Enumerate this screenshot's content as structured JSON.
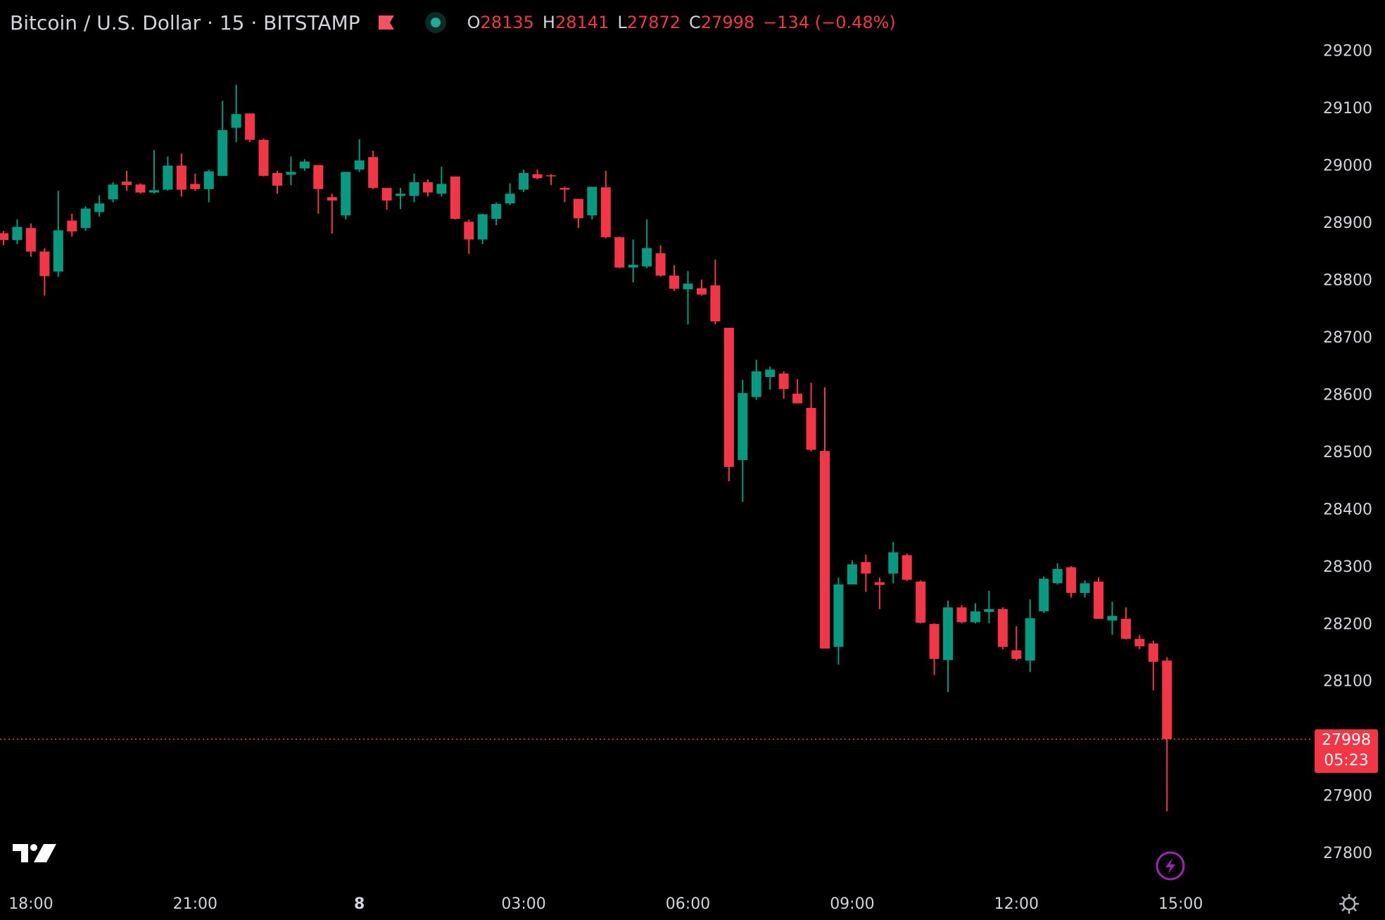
{
  "header": {
    "title": "Bitcoin / U.S. Dollar · 15 · BITSTAMP",
    "open_key": "O",
    "high_key": "H",
    "low_key": "L",
    "close_key": "C",
    "change_label": "−134 (−0.48%)",
    "countdown": "05:23"
  },
  "chart_data": {
    "type": "candlestick",
    "up_color": "#089981",
    "down_color": "#f23645",
    "categories": [
      null,
      null,
      "18:00",
      null,
      null,
      null,
      null,
      null,
      null,
      null,
      null,
      null,
      null,
      null,
      "21:00",
      null,
      null,
      null,
      null,
      null,
      null,
      null,
      null,
      null,
      null,
      null,
      "8",
      null,
      null,
      null,
      null,
      null,
      null,
      null,
      null,
      null,
      null,
      null,
      "03:00",
      null,
      null,
      null,
      null,
      null,
      null,
      null,
      null,
      null,
      null,
      null,
      "06:00",
      null,
      null,
      null,
      null,
      null,
      null,
      null,
      null,
      null,
      null,
      null,
      "09:00",
      null,
      null,
      null,
      null,
      null,
      null,
      null,
      null,
      null,
      null,
      null,
      "12:00",
      null,
      null,
      null,
      null,
      null,
      null,
      null,
      null,
      null,
      null,
      null,
      "15:00"
    ],
    "open": [
      28881,
      28869,
      28890,
      28849,
      28814,
      28903,
      28890,
      28918,
      28940,
      28971,
      28966,
      28952,
      28957,
      28999,
      28967,
      28958,
      28981,
      29065,
      29090,
      29044,
      28986,
      28983,
      28994,
      29000,
      28944,
      28912,
      28992,
      29014,
      28960,
      28946,
      28946,
      28970,
      28950,
      28980,
      28901,
      28870,
      28906,
      28933,
      28957,
      28984,
      28982,
      28960,
      28941,
      28912,
      28961,
      28874,
      28821,
      28823,
      28846,
      28807,
      28783,
      28785,
      28790,
      28716,
      28485,
      28595,
      28630,
      28636,
      28601,
      28576,
      28501,
      28159,
      28268,
      28307,
      28272,
      28287,
      28319,
      28273,
      28199,
      28136,
      28228,
      28202,
      28220,
      28225,
      28153,
      28135,
      28221,
      28270,
      28298,
      28253,
      28273,
      28205,
      28208,
      28173,
      28165,
      28135,
      null
    ],
    "high": [
      28885,
      28905,
      28898,
      28855,
      28955,
      28915,
      28928,
      28947,
      28970,
      28990,
      28968,
      29026,
      29015,
      29020,
      28985,
      28992,
      29112,
      29140,
      29090,
      29046,
      28990,
      29015,
      29010,
      29000,
      28950,
      28988,
      29045,
      29025,
      28960,
      28960,
      28985,
      28975,
      28997,
      28980,
      28905,
      28915,
      28935,
      28968,
      28992,
      28992,
      28984,
      28962,
      28941,
      28962,
      28990,
      28875,
      28870,
      28905,
      28860,
      28825,
      28815,
      28800,
      28835,
      28716,
      28625,
      28660,
      28648,
      28640,
      28626,
      28620,
      28612,
      28280,
      28310,
      28320,
      28280,
      28342,
      28322,
      28275,
      28200,
      28240,
      28232,
      28235,
      28257,
      28228,
      28195,
      28242,
      28282,
      28305,
      28300,
      28275,
      28280,
      28238,
      28228,
      28180,
      28170,
      28141,
      null
    ],
    "low": [
      28860,
      28862,
      28840,
      28772,
      28805,
      28875,
      28885,
      28910,
      28935,
      28955,
      28950,
      28950,
      28955,
      28945,
      28955,
      28935,
      28981,
      29040,
      29040,
      28980,
      28950,
      28965,
      28990,
      28915,
      28880,
      28905,
      28988,
      28958,
      28922,
      28923,
      28935,
      28945,
      28945,
      28905,
      28845,
      28862,
      28895,
      28930,
      28953,
      28975,
      28965,
      28935,
      28890,
      28905,
      28872,
      28820,
      28795,
      28820,
      28805,
      28780,
      28722,
      28772,
      28722,
      28448,
      28412,
      28590,
      28608,
      28592,
      28584,
      28500,
      28156,
      28128,
      28268,
      28255,
      28225,
      28270,
      28274,
      28200,
      28110,
      28080,
      28200,
      28200,
      28200,
      28155,
      28135,
      28115,
      28218,
      28268,
      28245,
      28245,
      28208,
      28180,
      28172,
      28155,
      28083,
      27872,
      null
    ],
    "close": [
      28869,
      28892,
      28849,
      28806,
      28886,
      28884,
      28924,
      28933,
      28966,
      28965,
      28952,
      28956,
      28999,
      28957,
      28958,
      28989,
      29061,
      29089,
      29044,
      28981,
      28964,
      28988,
      29006,
      28958,
      28938,
      28988,
      29008,
      28960,
      28938,
      28950,
      28970,
      28952,
      28967,
      28906,
      28870,
      28914,
      28932,
      28950,
      28986,
      28977,
      28981,
      28957,
      28907,
      28962,
      28874,
      28821,
      28826,
      28855,
      28807,
      28784,
      28793,
      28774,
      28727,
      28473,
      28602,
      28640,
      28643,
      28609,
      28584,
      28503,
      28156,
      28268,
      28303,
      28287,
      28267,
      28324,
      28276,
      28201,
      28138,
      28228,
      28202,
      28221,
      28225,
      28159,
      28138,
      28209,
      28278,
      28295,
      28253,
      28270,
      28208,
      28213,
      28173,
      28160,
      28133,
      27998,
      null
    ],
    "ylim": [
      27740,
      29288
    ],
    "yticks": [
      27800,
      27900,
      28000,
      28100,
      28200,
      28300,
      28400,
      28500,
      28600,
      28700,
      28800,
      28900,
      29000,
      29100,
      29200
    ]
  }
}
